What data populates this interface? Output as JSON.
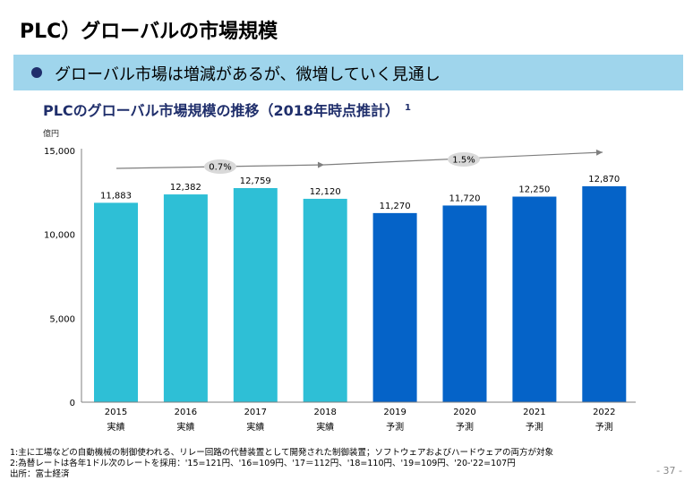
{
  "page": {
    "title": "PLC）グローバルの市場規模",
    "banner_text": "グローバル市場は増減があるが、微増していく見通し",
    "chart_heading": "PLCのグローバル市場規模の推移（2018年時点推計）",
    "chart_heading_footnote": "1",
    "page_number": "- 37 -",
    "notes": [
      "1:主に工場などの自動機械の制御使われる、リレー回路の代替装置として開発された制御装置；ソフトウェアおよびハードウェアの両方が対象",
      "2:為替レートは各年1ドル次のレートを採用：'15=121円、'16=109円、'17＝112円、'18=110円、'19=109円、'20-'22=107円",
      "出所：富士経済"
    ]
  },
  "colors": {
    "actual": "#2ebfd6",
    "forecast": "#0563c8",
    "banner": "#9fd5ec",
    "heading": "#1f2e6b",
    "arrow": "#7f7f7f",
    "bubble": "#d9d9d9"
  },
  "chart_data": {
    "type": "bar",
    "title": "PLCのグローバル市場規模の推移（2018年時点推計）",
    "unit_label": "億円",
    "xlabel": "",
    "ylabel": "億円",
    "ylim": [
      0,
      15000
    ],
    "yticks": [
      0,
      5000,
      10000,
      15000
    ],
    "ytick_labels": [
      "0",
      "5,000",
      "10,000",
      "15,000"
    ],
    "grid": false,
    "categories": [
      "2015",
      "2016",
      "2017",
      "2018",
      "2019",
      "2020",
      "2021",
      "2022"
    ],
    "sublabels": [
      "実績",
      "実績",
      "実績",
      "実績",
      "予測",
      "予測",
      "予測",
      "予測"
    ],
    "values": [
      11883,
      12382,
      12759,
      12120,
      11270,
      11720,
      12250,
      12870
    ],
    "value_labels": [
      "11,883",
      "12,382",
      "12,759",
      "12,120",
      "11,270",
      "11,720",
      "12,250",
      "12,870"
    ],
    "series_type": [
      "actual",
      "actual",
      "actual",
      "actual",
      "forecast",
      "forecast",
      "forecast",
      "forecast"
    ],
    "legend": null,
    "annotations": [
      {
        "text": "0.7%",
        "meaning": "CAGR 2015-2018",
        "from": "2015",
        "to": "2018"
      },
      {
        "text": "1.5%",
        "meaning": "CAGR 2018-2022",
        "from": "2018",
        "to": "2022"
      }
    ]
  }
}
